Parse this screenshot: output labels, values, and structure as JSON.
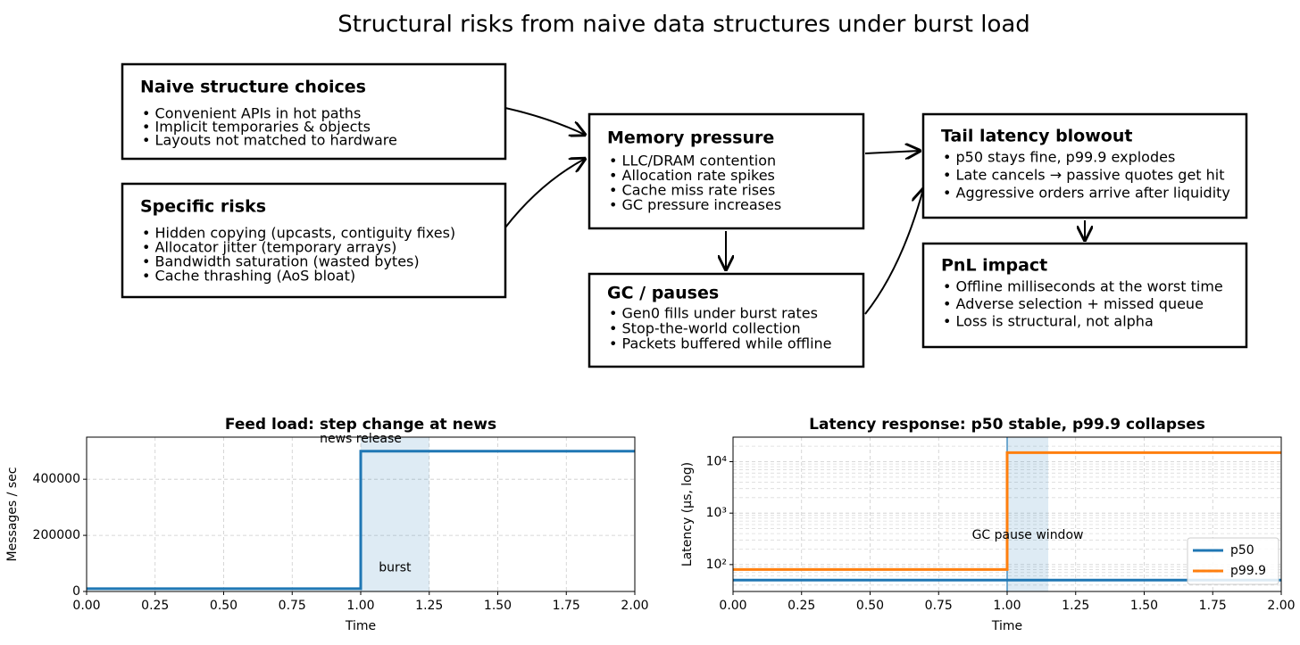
{
  "title": "Structural risks from naive data structures under burst load",
  "diagram": {
    "nodes": [
      {
        "title": "Naive structure choices",
        "items": [
          "• Convenient APIs in hot paths",
          "• Implicit temporaries & objects",
          "• Layouts not matched to hardware"
        ]
      },
      {
        "title": "Specific risks",
        "items": [
          "• Hidden copying (upcasts, contiguity fixes)",
          "• Allocator jitter (temporary arrays)",
          "• Bandwidth saturation (wasted bytes)",
          "• Cache thrashing (AoS bloat)"
        ]
      },
      {
        "title": "Memory pressure",
        "items": [
          "• LLC/DRAM contention",
          "• Allocation rate spikes",
          "• Cache miss rate rises",
          "• GC pressure increases"
        ]
      },
      {
        "title": "GC / pauses",
        "items": [
          "• Gen0 fills under burst rates",
          "• Stop-the-world collection",
          "• Packets buffered while offline"
        ]
      },
      {
        "title": "Tail latency blowout",
        "items": [
          "• p50 stays fine, p99.9 explodes",
          "• Late cancels → passive quotes get hit",
          "• Aggressive orders arrive after liquidity"
        ]
      },
      {
        "title": "PnL impact",
        "items": [
          "• Offline milliseconds at the worst time",
          "• Adverse selection + missed queue",
          "• Loss is structural, not alpha"
        ]
      }
    ]
  },
  "chart_data": [
    {
      "type": "line",
      "title": "Feed load: step change at news",
      "x_label": "Time",
      "y_label": "Messages / sec",
      "series": [
        {
          "color": "#1f77b4",
          "x": [
            0,
            1,
            1,
            2
          ],
          "values": [
            10000,
            10000,
            500000,
            500000
          ]
        }
      ],
      "spans": [
        {
          "x": [
            1,
            1.25
          ],
          "color": "#1f77b4"
        }
      ],
      "annotations": [
        {
          "text": "news release",
          "x": 1.0,
          "y": 550000
        },
        {
          "text": "burst",
          "x": 1.125,
          "y": 90000
        }
      ],
      "xlim": [
        0,
        2
      ],
      "ylim": [
        0,
        550000
      ],
      "xticks": [
        {
          "value": 0,
          "label": "0.00"
        },
        {
          "value": 0.25,
          "label": "0.25"
        },
        {
          "value": 0.5,
          "label": "0.50"
        },
        {
          "value": 0.75,
          "label": "0.75"
        },
        {
          "value": 1,
          "label": "1.00"
        },
        {
          "value": 1.25,
          "label": "1.25"
        },
        {
          "value": 1.5,
          "label": "1.50"
        },
        {
          "value": 1.75,
          "label": "1.75"
        },
        {
          "value": 2,
          "label": "2.00"
        }
      ],
      "yticks": [
        0,
        200000,
        400000
      ],
      "grid": true
    },
    {
      "type": "line",
      "title": "Latency response: p50 stable, p99.9 collapses",
      "x_label": "Time",
      "y_label": "Latency (µs, log)",
      "series": [
        {
          "name": "p50",
          "color": "#1f77b4",
          "x": [
            0,
            2
          ],
          "values": [
            50,
            50
          ]
        },
        {
          "name": "p99.9",
          "color": "#ff7f0e",
          "x": [
            0,
            1,
            1,
            2
          ],
          "values": [
            80,
            80,
            15000,
            15000
          ]
        }
      ],
      "spans": [
        {
          "x": [
            1,
            1.15
          ],
          "color": "#1f77b4"
        }
      ],
      "vline": 1.0,
      "annotations": [
        {
          "text": "GC pause window",
          "x": 1.075,
          "y": 400
        }
      ],
      "xlim": [
        0,
        2
      ],
      "ylim": [
        30,
        30000
      ],
      "log_y": true,
      "minor_grid": true,
      "legend": "lower right",
      "xticks": [
        {
          "value": 0,
          "label": "0.00"
        },
        {
          "value": 0.25,
          "label": "0.25"
        },
        {
          "value": 0.5,
          "label": "0.50"
        },
        {
          "value": 0.75,
          "label": "0.75"
        },
        {
          "value": 1,
          "label": "1.00"
        },
        {
          "value": 1.25,
          "label": "1.25"
        },
        {
          "value": 1.5,
          "label": "1.50"
        },
        {
          "value": 1.75,
          "label": "1.75"
        },
        {
          "value": 2,
          "label": "2.00"
        }
      ],
      "yticks": [
        {
          "value": 100,
          "label": "10²"
        },
        {
          "value": 1000,
          "label": "10³"
        },
        {
          "value": 10000,
          "label": "10⁴"
        }
      ],
      "grid": true
    }
  ]
}
